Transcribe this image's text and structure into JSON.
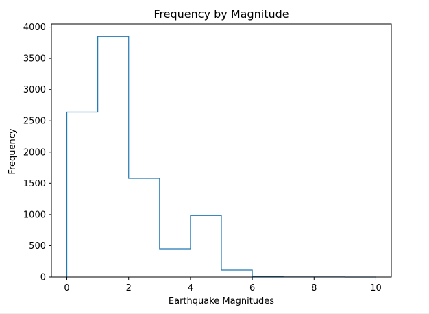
{
  "chart_data": {
    "type": "histogram",
    "title": "Frequency by Magnitude",
    "xlabel": "Earthquake Magnitudes",
    "ylabel": "Frequency",
    "histtype": "step",
    "bin_edges": [
      0,
      1,
      2,
      3,
      4,
      5,
      6,
      7,
      8,
      9,
      10
    ],
    "values": [
      2640,
      3850,
      1580,
      450,
      985,
      110,
      10,
      2,
      1,
      0
    ],
    "xlim": [
      -0.5,
      10.5
    ],
    "ylim": [
      0,
      4050
    ],
    "xticks": [
      0,
      2,
      4,
      6,
      8,
      10
    ],
    "yticks": [
      0,
      500,
      1000,
      1500,
      2000,
      2500,
      3000,
      3500,
      4000
    ],
    "grid": false,
    "legend": "none",
    "colors": {
      "series": "#1f77b4",
      "axes": "#000000",
      "background": "#ffffff"
    }
  }
}
